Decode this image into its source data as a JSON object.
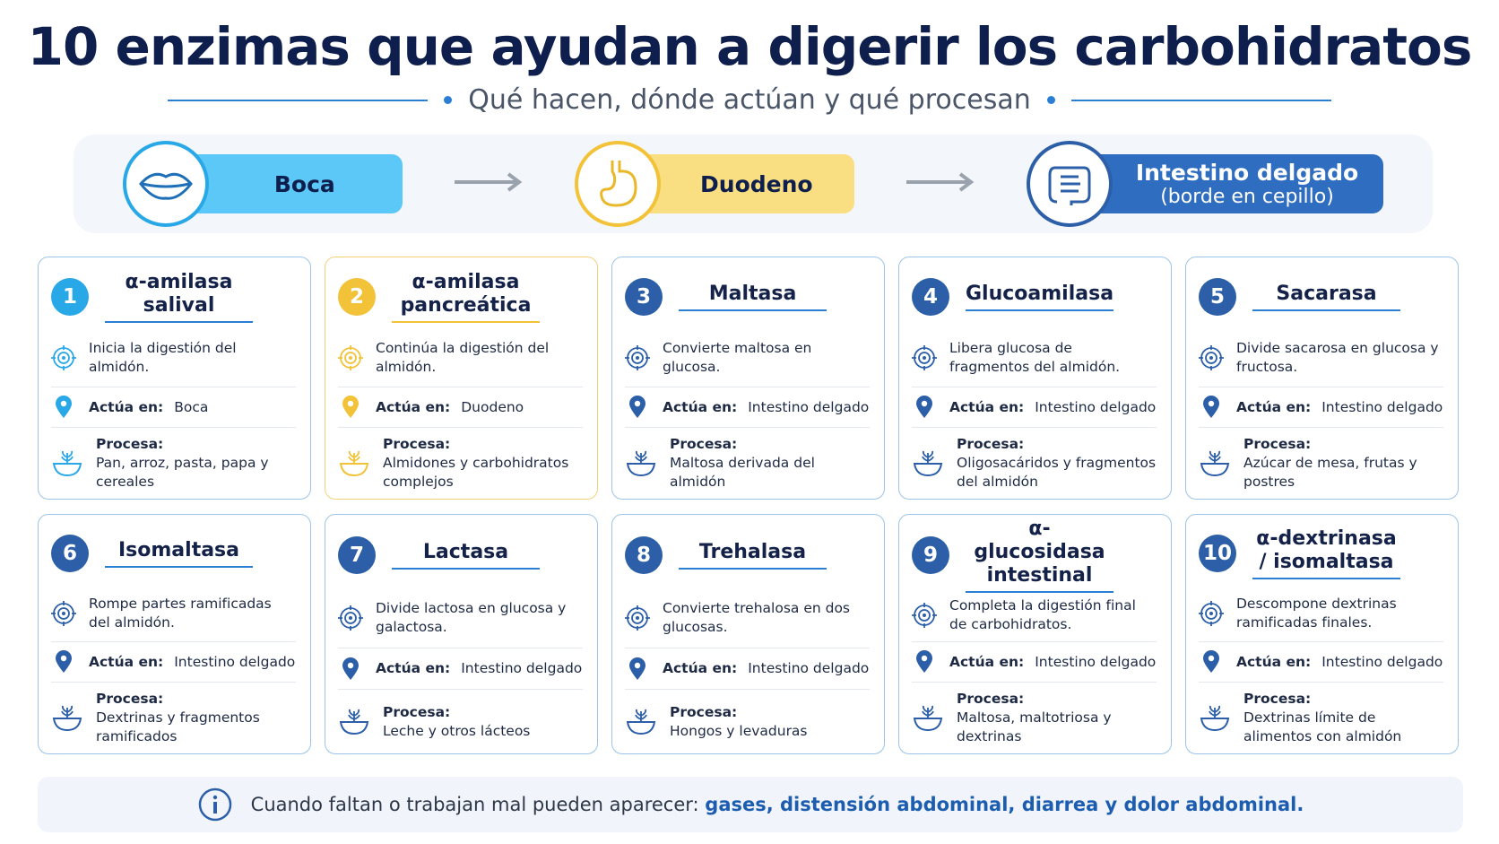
{
  "header": {
    "title": "10 enzimas que ayudan a digerir los carbohidratos",
    "subtitle": "Qué hacen, dónde actúan y qué procesan"
  },
  "stages": [
    {
      "label": "Boca"
    },
    {
      "label": "Duodeno"
    },
    {
      "label": "Intestino delgado",
      "sublabel": "(borde en cepillo)"
    }
  ],
  "cards": [
    {
      "number": "1",
      "name": "α-amilasa salival",
      "description": "Inicia la digestión del almidón.",
      "acts_label": "Actúa en:",
      "location": "Boca",
      "process_label": "Procesa:",
      "process": "Pan, arroz, pasta, papa y cereales"
    },
    {
      "number": "2",
      "name": "α-amilasa pancreática",
      "description": "Continúa la digestión del almidón.",
      "acts_label": "Actúa en:",
      "location": "Duodeno",
      "process_label": "Procesa:",
      "process": "Almidones y carbohidratos complejos"
    },
    {
      "number": "3",
      "name": "Maltasa",
      "description": "Convierte maltosa en glucosa.",
      "acts_label": "Actúa en:",
      "location": "Intestino delgado",
      "process_label": "Procesa:",
      "process": "Maltosa derivada del almidón"
    },
    {
      "number": "4",
      "name": "Glucoamilasa",
      "description": "Libera glucosa de fragmentos del almidón.",
      "acts_label": "Actúa en:",
      "location": "Intestino delgado",
      "process_label": "Procesa:",
      "process": "Oligosacáridos y fragmentos del almidón"
    },
    {
      "number": "5",
      "name": "Sacarasa",
      "description": "Divide sacarosa en glucosa y fructosa.",
      "acts_label": "Actúa en:",
      "location": "Intestino delgado",
      "process_label": "Procesa:",
      "process": "Azúcar de mesa, frutas y postres"
    },
    {
      "number": "6",
      "name": "Isomaltasa",
      "description": "Rompe partes ramificadas del almidón.",
      "acts_label": "Actúa en:",
      "location": "Intestino delgado",
      "process_label": "Procesa:",
      "process": "Dextrinas y fragmentos ramificados"
    },
    {
      "number": "7",
      "name": "Lactasa",
      "description": "Divide lactosa en glucosa y galactosa.",
      "acts_label": "Actúa en:",
      "location": "Intestino delgado",
      "process_label": "Procesa:",
      "process": "Leche y otros lácteos"
    },
    {
      "number": "8",
      "name": "Trehalasa",
      "description": "Convierte trehalosa en dos glucosas.",
      "acts_label": "Actúa en:",
      "location": "Intestino delgado",
      "process_label": "Procesa:",
      "process": "Hongos y levaduras"
    },
    {
      "number": "9",
      "name": "α-glucosidasa intestinal",
      "description": "Completa la digestión final de carbohidratos.",
      "acts_label": "Actúa en:",
      "location": "Intestino delgado",
      "process_label": "Procesa:",
      "process": "Maltosa, maltotriosa y dextrinas"
    },
    {
      "number": "10",
      "name": "α-dextrinasa / isomaltasa",
      "description": "Descompone dextrinas ramificadas finales.",
      "acts_label": "Actúa en:",
      "location": "Intestino delgado",
      "process_label": "Procesa:",
      "process": "Dextrinas límite de alimentos con almidón"
    }
  ],
  "footer": {
    "text": "Cuando faltan o trabajan mal pueden aparecer:",
    "highlight": "gases, distensión abdominal, diarrea y dolor abdominal."
  }
}
